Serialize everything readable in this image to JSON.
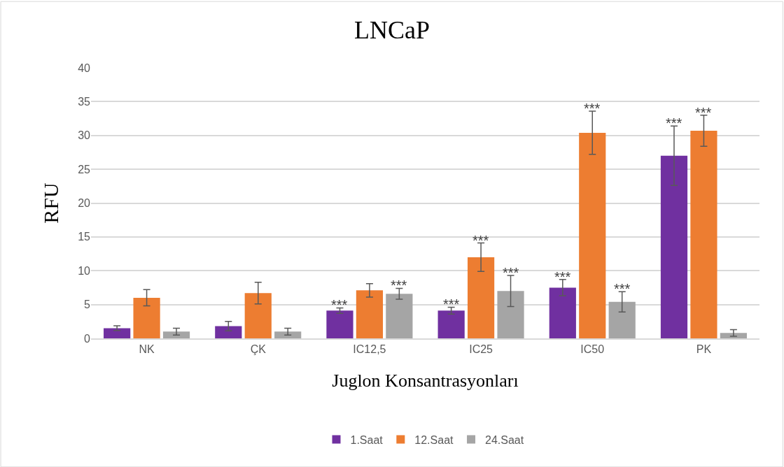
{
  "chart_data": {
    "type": "bar",
    "title": "LNCaP",
    "xlabel": "Juglon Konsantrasyonları",
    "ylabel": "RFU",
    "categories": [
      "NK",
      "ÇK",
      "IC12,5",
      "IC25",
      "IC50",
      "PK"
    ],
    "series": [
      {
        "name": "1.Saat",
        "color": "#7030a0",
        "values": [
          1.5,
          1.8,
          4.1,
          4.1,
          7.5,
          27.0
        ],
        "errors": [
          0.35,
          0.7,
          0.4,
          0.5,
          1.2,
          4.4
        ],
        "value_labels": [
          null,
          null,
          "***",
          "***",
          "***",
          "***"
        ]
      },
      {
        "name": "12.Saat",
        "color": "#ed7d31",
        "values": [
          6.0,
          6.7,
          7.1,
          12.0,
          30.4,
          30.7
        ],
        "errors": [
          1.2,
          1.6,
          1.0,
          2.1,
          3.2,
          2.3
        ],
        "value_labels": [
          null,
          null,
          null,
          "***",
          "***",
          "***"
        ]
      },
      {
        "name": "24.Saat",
        "color": "#a5a5a5",
        "values": [
          1.0,
          1.0,
          6.6,
          7.0,
          5.4,
          0.8
        ],
        "errors": [
          0.5,
          0.5,
          0.8,
          2.3,
          1.5,
          0.5
        ],
        "value_labels": [
          null,
          null,
          "***",
          "***",
          "***",
          null
        ]
      }
    ],
    "ylim": [
      0,
      40
    ],
    "yticks": [
      0,
      5,
      10,
      15,
      20,
      25,
      30,
      35,
      40
    ],
    "grid": "y",
    "legend": "bottom"
  }
}
